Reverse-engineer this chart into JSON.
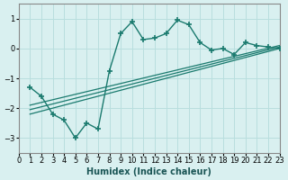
{
  "title": "",
  "xlabel": "Humidex (Indice chaleur)",
  "ylabel": "",
  "bg_color": "#d9f0f0",
  "grid_color": "#b8dede",
  "line_color": "#1a7a6e",
  "xlim": [
    0,
    23
  ],
  "ylim": [
    -3.5,
    1.5
  ],
  "yticks": [
    -3,
    -2,
    -1,
    0,
    1
  ],
  "xticks": [
    0,
    1,
    2,
    3,
    4,
    5,
    6,
    7,
    8,
    9,
    10,
    11,
    12,
    13,
    14,
    15,
    16,
    17,
    18,
    19,
    20,
    21,
    22,
    23
  ],
  "curve1_x": [
    1,
    2,
    3,
    4,
    5,
    6,
    7,
    8,
    9,
    10,
    11,
    12,
    13,
    14,
    15,
    16,
    17,
    18,
    19,
    20,
    21,
    22,
    23
  ],
  "curve1_y": [
    -1.3,
    -1.6,
    -2.2,
    -2.4,
    -3.0,
    -2.5,
    -2.7,
    -0.75,
    0.5,
    0.9,
    0.3,
    0.35,
    0.5,
    0.95,
    0.8,
    0.2,
    -0.05,
    0.0,
    -0.2,
    0.2,
    0.1,
    0.05,
    0.0
  ],
  "trend_lines": [
    {
      "x": [
        1,
        23
      ],
      "y": [
        -2.2,
        0.0
      ]
    },
    {
      "x": [
        1,
        23
      ],
      "y": [
        -2.05,
        0.05
      ]
    },
    {
      "x": [
        1,
        23
      ],
      "y": [
        -1.9,
        0.1
      ]
    }
  ]
}
